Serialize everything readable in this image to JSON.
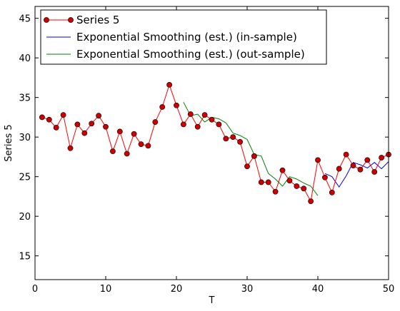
{
  "chart_data": {
    "type": "line",
    "xlabel": "T",
    "ylabel": "Series 5",
    "xlim": [
      0,
      50
    ],
    "ylim": [
      12,
      46.5
    ],
    "xticks": [
      0,
      10,
      20,
      30,
      40,
      50
    ],
    "yticks": [
      15,
      20,
      25,
      30,
      35,
      40,
      45
    ],
    "grid": false,
    "legend_position": "top-left",
    "series": [
      {
        "name": "Series 5",
        "color": "#ff0000",
        "marker_color": "#cc0000",
        "marker": "circle",
        "x": [
          1,
          2,
          3,
          4,
          5,
          6,
          7,
          8,
          9,
          10,
          11,
          12,
          13,
          14,
          15,
          16,
          17,
          18,
          19,
          20,
          21,
          22,
          23,
          24,
          25,
          26,
          27,
          28,
          29,
          30,
          31,
          32,
          33,
          34,
          35,
          36,
          37,
          38,
          39,
          40,
          41,
          42,
          43,
          44,
          45,
          46,
          47,
          48,
          49,
          50
        ],
        "y": [
          32.5,
          32.2,
          31.2,
          32.8,
          28.6,
          31.6,
          30.5,
          31.7,
          32.7,
          31.3,
          28.2,
          30.7,
          27.9,
          30.4,
          29.1,
          28.9,
          31.9,
          33.8,
          36.6,
          34.0,
          31.6,
          32.9,
          31.3,
          32.8,
          32.2,
          31.6,
          29.8,
          30.0,
          29.4,
          26.3,
          27.6,
          24.3,
          24.3,
          23.1,
          25.8,
          24.5,
          23.8,
          23.5,
          21.9,
          27.1,
          24.9,
          23.0,
          26.0,
          27.8,
          26.4,
          25.9,
          27.1,
          25.6,
          27.4,
          27.8
        ]
      },
      {
        "name": "Exponential Smoothing (est.) (in-sample)",
        "color": "#0000ff",
        "x": [
          41,
          42,
          43,
          44,
          45,
          46,
          47,
          48,
          49,
          50
        ],
        "y": [
          25.4,
          25.0,
          23.7,
          25.1,
          26.8,
          26.5,
          26.1,
          26.8,
          26.0,
          26.9
        ]
      },
      {
        "name": "Exponential Smoothing (est.) (out-sample)",
        "color": "#008000",
        "x": [
          21,
          22,
          23,
          24,
          25,
          26,
          27,
          28,
          29,
          30,
          31,
          32,
          33,
          34,
          35,
          36,
          37,
          38,
          39,
          40
        ],
        "y": [
          34.4,
          32.7,
          32.9,
          31.9,
          32.5,
          32.3,
          31.8,
          30.5,
          30.2,
          29.7,
          27.8,
          27.6,
          25.4,
          24.7,
          23.8,
          25.0,
          24.7,
          24.2,
          23.8,
          22.6
        ]
      }
    ]
  }
}
